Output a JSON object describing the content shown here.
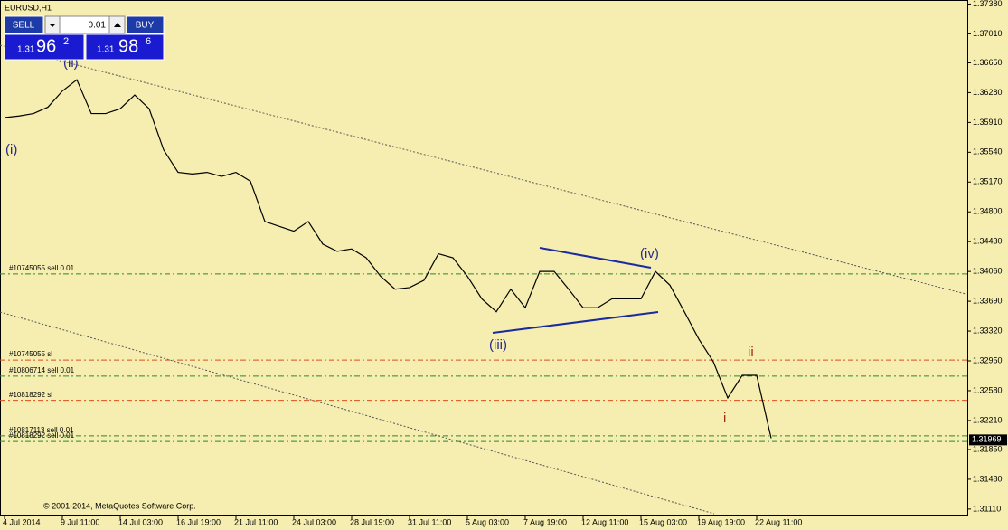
{
  "chart_data": {
    "type": "line",
    "symbol": "EURUSD,H1",
    "copyright": "© 2001-2014, MetaQuotes Software Corp.",
    "panel": {
      "sell": "SELL",
      "buy": "BUY",
      "lot": "0.01",
      "bid_big": "1.31",
      "bid_main": "96",
      "bid_sup": "2",
      "ask_big": "1.31",
      "ask_main": "98",
      "ask_sup": "6"
    },
    "categories": [
      "4 Jul 2014",
      null,
      null,
      null,
      "9 Jul 11:00",
      null,
      null,
      null,
      "14 Jul 03:00",
      null,
      null,
      null,
      "16 Jul 19:00",
      null,
      null,
      null,
      "21 Jul 11:00",
      null,
      null,
      null,
      "24 Jul 03:00",
      null,
      null,
      null,
      "28 Jul 19:00",
      null,
      null,
      null,
      "31 Jul 11:00",
      null,
      null,
      null,
      "5 Aug 03:00",
      null,
      null,
      null,
      "7 Aug 19:00",
      null,
      null,
      null,
      "12 Aug 11:00",
      null,
      null,
      null,
      "15 Aug 03:00",
      null,
      null,
      null,
      "19 Aug 19:00",
      null,
      null,
      null,
      "22 Aug 11:00",
      null
    ],
    "values": [
      1.3597,
      1.3599,
      1.3602,
      1.361,
      1.363,
      1.3644,
      1.3602,
      1.3602,
      1.3608,
      1.3625,
      1.3608,
      1.3557,
      1.3529,
      1.3527,
      1.3529,
      1.3524,
      1.3529,
      1.3518,
      1.3468,
      1.3462,
      1.3456,
      1.3468,
      1.344,
      1.3431,
      1.3434,
      1.3423,
      1.34,
      1.3384,
      1.3386,
      1.3395,
      1.3428,
      1.3423,
      1.34,
      1.3372,
      1.3356,
      1.3384,
      1.3361,
      1.3406,
      1.3406,
      1.3384,
      1.3361,
      1.3361,
      1.3372,
      1.3372,
      1.3372,
      1.3406,
      1.3389,
      1.3356,
      1.3322,
      1.3294,
      1.3249,
      1.3277,
      1.3277,
      1.3199
    ],
    "color": "#000000",
    "ylim": [
      1.3103,
      1.3743
    ],
    "yticks": [
      {
        "value": 1.3738,
        "label": "1.37380"
      },
      {
        "value": 1.3701,
        "label": "1.37010"
      },
      {
        "value": 1.3665,
        "label": "1.36650"
      },
      {
        "value": 1.3628,
        "label": "1.36280"
      },
      {
        "value": 1.3591,
        "label": "1.35910"
      },
      {
        "value": 1.3554,
        "label": "1.35540"
      },
      {
        "value": 1.3517,
        "label": "1.35170"
      },
      {
        "value": 1.348,
        "label": "1.34800"
      },
      {
        "value": 1.3443,
        "label": "1.34430"
      },
      {
        "value": 1.3406,
        "label": "1.34060"
      },
      {
        "value": 1.3369,
        "label": "1.33690"
      },
      {
        "value": 1.3332,
        "label": "1.33320"
      },
      {
        "value": 1.3295,
        "label": "1.32950"
      },
      {
        "value": 1.3258,
        "label": "1.32580"
      },
      {
        "value": 1.3221,
        "label": "1.32210"
      },
      {
        "value": 1.3185,
        "label": "1.31850"
      },
      {
        "value": 1.3148,
        "label": "1.31480"
      },
      {
        "value": 1.3111,
        "label": "1.31110"
      }
    ],
    "current_price": 1.31969,
    "orders": [
      {
        "label": "#10745055 sell 0.01",
        "price": 1.3403,
        "color": "#2a8a2a"
      },
      {
        "label": "#10745055 sl",
        "price": 1.3296,
        "color": "#e0501a"
      },
      {
        "label": "#10806714 sell 0.01",
        "price": 1.3276,
        "color": "#2a8a2a"
      },
      {
        "label": "#10818292 sl",
        "price": 1.3246,
        "color": "#e0501a"
      },
      {
        "label": "#10817113 sell 0.01",
        "price": 1.3202,
        "color": "#2a8a2a"
      },
      {
        "label": "#10818292 sell 0.01",
        "price": 1.3195,
        "color": "#2a8a2a"
      }
    ],
    "waves": [
      "(ii)",
      "(i)",
      "(iii)",
      "(iv)",
      "ii",
      "i"
    ]
  }
}
